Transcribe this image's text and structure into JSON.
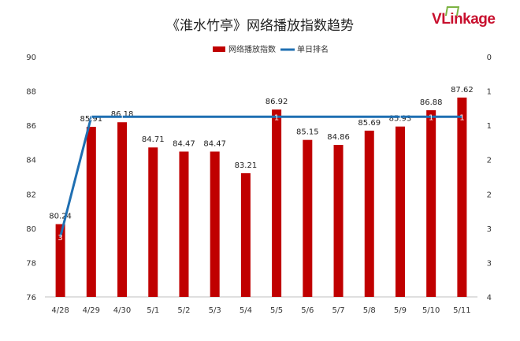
{
  "title": "《淮水竹亭》网络播放指数趋势",
  "logo": {
    "v": "V",
    "text": "Linkage"
  },
  "colors": {
    "bar": "#c00000",
    "line": "#1f6fb2"
  },
  "chart_data": {
    "type": "bar",
    "categories": [
      "4/28",
      "4/29",
      "4/30",
      "5/1",
      "5/2",
      "5/3",
      "5/4",
      "5/5",
      "5/6",
      "5/7",
      "5/8",
      "5/9",
      "5/10",
      "5/11"
    ],
    "series": [
      {
        "name": "网络播放指数",
        "type": "bar",
        "axis": "left",
        "values": [
          80.24,
          85.91,
          86.18,
          84.71,
          84.47,
          84.47,
          83.21,
          86.92,
          85.15,
          84.86,
          85.69,
          85.93,
          86.88,
          87.62
        ]
      },
      {
        "name": "单日排名",
        "type": "line",
        "axis": "right",
        "values": [
          3,
          1,
          1,
          null,
          null,
          null,
          null,
          1,
          null,
          null,
          null,
          1,
          1,
          1
        ]
      }
    ],
    "y_left": {
      "min": 76,
      "max": 90,
      "ticks": [
        76,
        78,
        80,
        82,
        84,
        86,
        88,
        90
      ]
    },
    "y_right": {
      "min": 0,
      "max": 4,
      "reversed": true,
      "tick_labels": [
        "0",
        "1",
        "1",
        "2",
        "2",
        "3",
        "3",
        "4"
      ]
    },
    "legend": "top-center",
    "grid": false
  }
}
